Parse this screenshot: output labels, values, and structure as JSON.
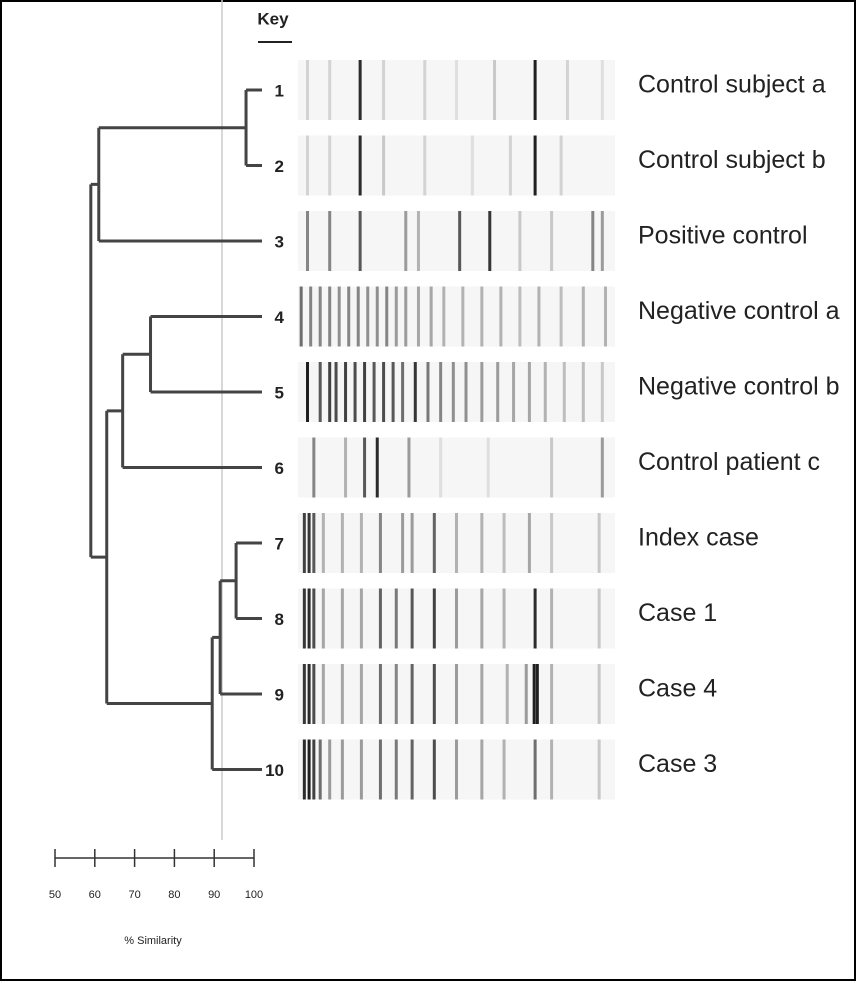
{
  "key_title": "Key",
  "rows": [
    {
      "number": "1",
      "label": "Control subject a",
      "bands": [
        [
          3,
          0.15
        ],
        [
          10,
          0.15
        ],
        [
          19.6,
          0.9
        ],
        [
          27,
          0.15
        ],
        [
          40,
          0.15
        ],
        [
          50,
          0.1
        ],
        [
          62,
          0.2
        ],
        [
          74.8,
          0.95
        ],
        [
          85,
          0.15
        ],
        [
          96,
          0.1
        ]
      ]
    },
    {
      "number": "2",
      "label": "Control subject b",
      "bands": [
        [
          3,
          0.15
        ],
        [
          10,
          0.15
        ],
        [
          19.6,
          0.9
        ],
        [
          27,
          0.2
        ],
        [
          40,
          0.15
        ],
        [
          55,
          0.1
        ],
        [
          67,
          0.15
        ],
        [
          74.8,
          0.95
        ],
        [
          83,
          0.15
        ]
      ]
    },
    {
      "number": "3",
      "label": "Positive control",
      "bands": [
        [
          3,
          0.5
        ],
        [
          10,
          0.5
        ],
        [
          19.6,
          0.7
        ],
        [
          34,
          0.4
        ],
        [
          38,
          0.3
        ],
        [
          51,
          0.7
        ],
        [
          60.5,
          0.85
        ],
        [
          70,
          0.2
        ],
        [
          80,
          0.2
        ],
        [
          93,
          0.5
        ],
        [
          96,
          0.4
        ]
      ]
    },
    {
      "number": "4",
      "label": "Negative control a",
      "bands": [
        [
          1,
          0.6
        ],
        [
          4,
          0.5
        ],
        [
          7,
          0.5
        ],
        [
          10,
          0.5
        ],
        [
          13,
          0.45
        ],
        [
          16,
          0.5
        ],
        [
          19,
          0.5
        ],
        [
          22,
          0.45
        ],
        [
          25,
          0.45
        ],
        [
          28,
          0.5
        ],
        [
          31,
          0.4
        ],
        [
          34,
          0.4
        ],
        [
          38,
          0.35
        ],
        [
          42,
          0.35
        ],
        [
          46,
          0.3
        ],
        [
          52,
          0.3
        ],
        [
          58,
          0.3
        ],
        [
          64,
          0.3
        ],
        [
          70,
          0.25
        ],
        [
          76,
          0.3
        ],
        [
          83,
          0.25
        ],
        [
          90,
          0.3
        ],
        [
          97,
          0.3
        ]
      ]
    },
    {
      "number": "5",
      "label": "Negative control b",
      "bands": [
        [
          3,
          0.95
        ],
        [
          7,
          0.7
        ],
        [
          10,
          0.8
        ],
        [
          12,
          0.75
        ],
        [
          15,
          0.8
        ],
        [
          18,
          0.75
        ],
        [
          21,
          0.8
        ],
        [
          24,
          0.7
        ],
        [
          27,
          0.75
        ],
        [
          30,
          0.7
        ],
        [
          33,
          0.6
        ],
        [
          37,
          0.85
        ],
        [
          41,
          0.55
        ],
        [
          45,
          0.5
        ],
        [
          49,
          0.45
        ],
        [
          53,
          0.45
        ],
        [
          58,
          0.4
        ],
        [
          63,
          0.4
        ],
        [
          68,
          0.35
        ],
        [
          73,
          0.35
        ],
        [
          78,
          0.3
        ],
        [
          84,
          0.25
        ],
        [
          90,
          0.25
        ],
        [
          96,
          0.2
        ]
      ]
    },
    {
      "number": "6",
      "label": "Control patient c",
      "bands": [
        [
          5,
          0.5
        ],
        [
          15,
          0.3
        ],
        [
          21,
          0.7
        ],
        [
          25,
          0.9
        ],
        [
          35,
          0.4
        ],
        [
          45,
          0.1
        ],
        [
          60,
          0.1
        ],
        [
          80,
          0.2
        ],
        [
          96,
          0.4
        ]
      ]
    },
    {
      "number": "7",
      "label": "Index case",
      "bands": [
        [
          2,
          0.8
        ],
        [
          3.5,
          0.85
        ],
        [
          5,
          0.7
        ],
        [
          8,
          0.3
        ],
        [
          14,
          0.3
        ],
        [
          20,
          0.3
        ],
        [
          26,
          0.5
        ],
        [
          33,
          0.4
        ],
        [
          36,
          0.4
        ],
        [
          43,
          0.65
        ],
        [
          50,
          0.3
        ],
        [
          58,
          0.3
        ],
        [
          65,
          0.25
        ],
        [
          73,
          0.35
        ],
        [
          80,
          0.2
        ],
        [
          95,
          0.2
        ]
      ]
    },
    {
      "number": "8",
      "label": "Case 1",
      "bands": [
        [
          2,
          0.85
        ],
        [
          3.5,
          0.9
        ],
        [
          5,
          0.75
        ],
        [
          8,
          0.35
        ],
        [
          14,
          0.35
        ],
        [
          20,
          0.35
        ],
        [
          26,
          0.65
        ],
        [
          31,
          0.55
        ],
        [
          36,
          0.7
        ],
        [
          43,
          0.8
        ],
        [
          50,
          0.4
        ],
        [
          58,
          0.35
        ],
        [
          65,
          0.3
        ],
        [
          74.8,
          0.9
        ],
        [
          80,
          0.3
        ],
        [
          95,
          0.2
        ]
      ]
    },
    {
      "number": "9",
      "label": "Case 4",
      "bands": [
        [
          2,
          0.85
        ],
        [
          3.5,
          0.9
        ],
        [
          5,
          0.75
        ],
        [
          8,
          0.35
        ],
        [
          14,
          0.35
        ],
        [
          20,
          0.35
        ],
        [
          26,
          0.6
        ],
        [
          31,
          0.5
        ],
        [
          36,
          0.65
        ],
        [
          43,
          0.75
        ],
        [
          50,
          0.4
        ],
        [
          58,
          0.35
        ],
        [
          66,
          0.3
        ],
        [
          72,
          0.4
        ],
        [
          74.5,
          0.95
        ],
        [
          75.5,
          0.95
        ],
        [
          80,
          0.3
        ],
        [
          95,
          0.2
        ]
      ]
    },
    {
      "number": "10",
      "label": "Case 3",
      "bands": [
        [
          2,
          0.9
        ],
        [
          3.5,
          0.95
        ],
        [
          5,
          0.8
        ],
        [
          7,
          0.6
        ],
        [
          10,
          0.4
        ],
        [
          14,
          0.4
        ],
        [
          20,
          0.4
        ],
        [
          26,
          0.6
        ],
        [
          31,
          0.55
        ],
        [
          36,
          0.65
        ],
        [
          43,
          0.75
        ],
        [
          50,
          0.4
        ],
        [
          58,
          0.35
        ],
        [
          65,
          0.3
        ],
        [
          74.8,
          0.6
        ],
        [
          80,
          0.3
        ],
        [
          95,
          0.2
        ]
      ]
    }
  ],
  "dendrogram": [
    {
      "children": [
        0,
        1
      ],
      "similarity": 98
    },
    {
      "children": [
        10,
        2
      ],
      "similarity": 61
    },
    {
      "children": [
        3,
        4
      ],
      "similarity": 74
    },
    {
      "children": [
        12,
        5
      ],
      "similarity": 67
    },
    {
      "children": [
        6,
        7
      ],
      "similarity": 95.5
    },
    {
      "children": [
        14,
        8
      ],
      "similarity": 91.5
    },
    {
      "children": [
        15,
        9
      ],
      "similarity": 89.5
    },
    {
      "children": [
        13,
        16
      ],
      "similarity": 63
    },
    {
      "children": [
        11,
        17
      ],
      "similarity": 59
    }
  ],
  "axis": {
    "label": "% Similarity",
    "lim": [
      50,
      100
    ],
    "ticks": [
      50,
      60,
      70,
      80,
      90,
      100
    ]
  }
}
